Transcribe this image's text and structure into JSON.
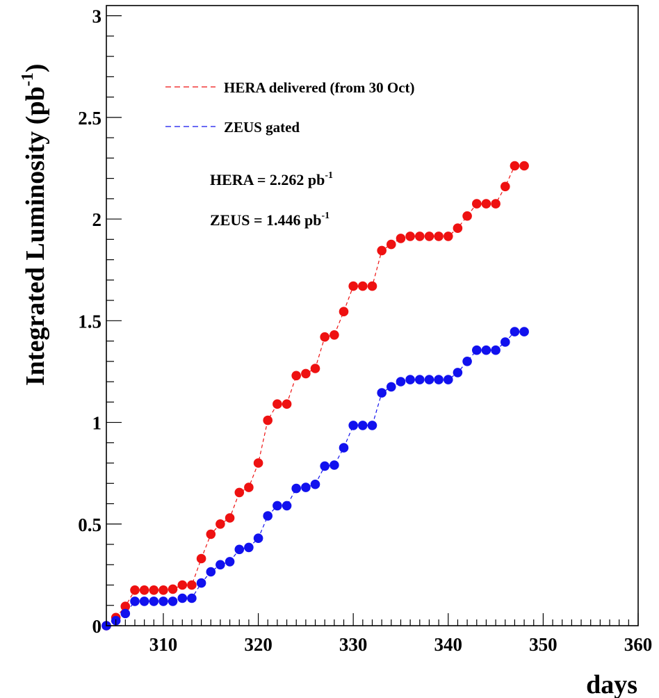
{
  "chart_data": {
    "type": "scatter",
    "xlabel": "days",
    "ylabel": "Integrated Luminosity (pb",
    "ylabel_superscript": "-1",
    "ylabel_suffix": ")",
    "xlim": [
      304,
      360
    ],
    "ylim": [
      0,
      3.05
    ],
    "x_ticks": [
      310,
      320,
      330,
      340,
      350,
      360
    ],
    "y_ticks": [
      0,
      0.5,
      1,
      1.5,
      2,
      2.5,
      3
    ],
    "x_tick_labels": [
      "310",
      "320",
      "330",
      "340",
      "350",
      "360"
    ],
    "y_tick_labels": [
      "0",
      "0.5",
      "1",
      "1.5",
      "2",
      "2.5",
      "3"
    ],
    "grid": false,
    "legend_position": "top-left",
    "series": [
      {
        "name": "HERA delivered (from 30 Oct)",
        "color": "#ee1111",
        "line_style": "dashed",
        "x": [
          304,
          305,
          306,
          307,
          308,
          309,
          310,
          311,
          312,
          313,
          314,
          315,
          316,
          317,
          318,
          319,
          320,
          321,
          322,
          323,
          324,
          325,
          326,
          327,
          328,
          329,
          330,
          331,
          332,
          333,
          334,
          335,
          336,
          337,
          338,
          339,
          340,
          341,
          342,
          343,
          344,
          345,
          346,
          347,
          348
        ],
        "y": [
          0.0,
          0.04,
          0.095,
          0.175,
          0.175,
          0.175,
          0.175,
          0.18,
          0.2,
          0.2,
          0.33,
          0.45,
          0.5,
          0.53,
          0.655,
          0.68,
          0.8,
          1.01,
          1.09,
          1.09,
          1.23,
          1.24,
          1.265,
          1.42,
          1.43,
          1.545,
          1.67,
          1.67,
          1.67,
          1.845,
          1.875,
          1.905,
          1.915,
          1.915,
          1.915,
          1.915,
          1.915,
          1.955,
          2.015,
          2.075,
          2.075,
          2.075,
          2.16,
          2.262,
          2.262
        ]
      },
      {
        "name": "ZEUS gated",
        "color": "#1111ee",
        "line_style": "dashed",
        "x": [
          304,
          305,
          306,
          307,
          308,
          309,
          310,
          311,
          312,
          313,
          314,
          315,
          316,
          317,
          318,
          319,
          320,
          321,
          322,
          323,
          324,
          325,
          326,
          327,
          328,
          329,
          330,
          331,
          332,
          333,
          334,
          335,
          336,
          337,
          338,
          339,
          340,
          341,
          342,
          343,
          344,
          345,
          346,
          347,
          348
        ],
        "y": [
          0.0,
          0.025,
          0.06,
          0.12,
          0.12,
          0.12,
          0.12,
          0.12,
          0.135,
          0.135,
          0.21,
          0.265,
          0.3,
          0.315,
          0.375,
          0.385,
          0.43,
          0.54,
          0.59,
          0.59,
          0.675,
          0.68,
          0.695,
          0.785,
          0.79,
          0.875,
          0.985,
          0.985,
          0.985,
          1.145,
          1.175,
          1.2,
          1.21,
          1.21,
          1.21,
          1.21,
          1.21,
          1.245,
          1.3,
          1.355,
          1.355,
          1.355,
          1.395,
          1.446,
          1.446
        ]
      }
    ],
    "annotations": [
      {
        "text": "HERA = 2.262 pb",
        "superscript": "-1"
      },
      {
        "text": "ZEUS = 1.446 pb",
        "superscript": "-1"
      }
    ]
  }
}
